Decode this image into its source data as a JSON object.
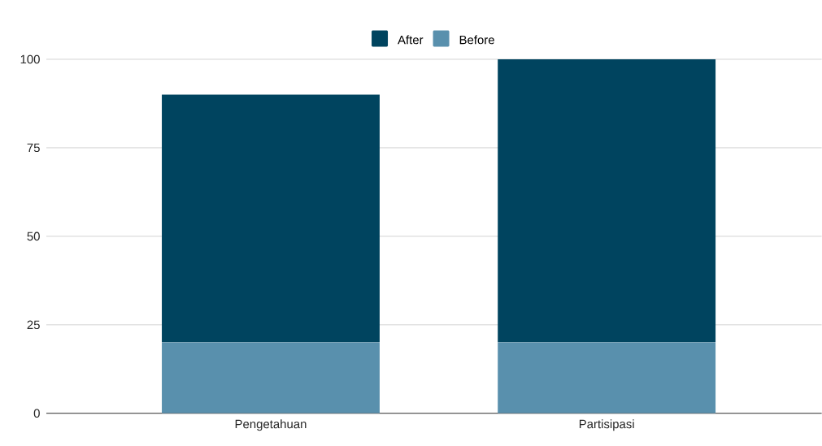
{
  "chart_data": {
    "type": "bar",
    "stacked": true,
    "categories": [
      "Pengetahuan",
      "Partisipasi"
    ],
    "series": [
      {
        "name": "Before",
        "color": "#5990ad",
        "values": [
          20,
          20
        ]
      },
      {
        "name": "After",
        "color": "#00445f",
        "values": [
          70,
          80
        ]
      }
    ],
    "ylim": [
      0,
      100
    ],
    "yticks": [
      0,
      25,
      50,
      75,
      100
    ],
    "grid": "y",
    "legend": "top"
  }
}
